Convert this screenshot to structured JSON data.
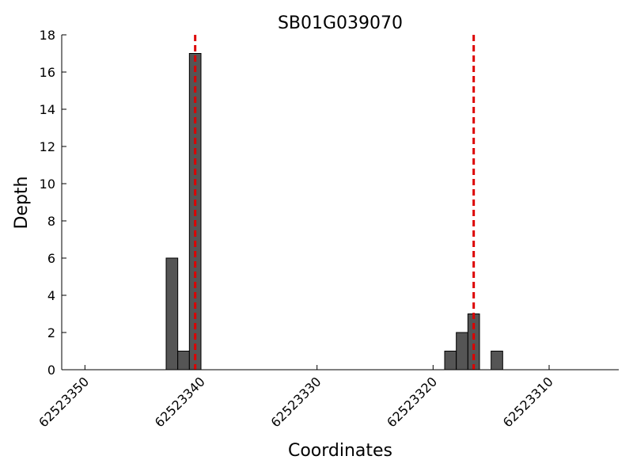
{
  "chart_data": {
    "type": "bar",
    "title": "SB01G039070",
    "xlabel": "Coordinates",
    "ylabel": "Depth",
    "x": [
      62523343,
      62523342,
      62523341,
      62523319,
      62523318,
      62523317,
      62523315
    ],
    "values": [
      6,
      1,
      17,
      1,
      2,
      3,
      1
    ],
    "color": "#555555",
    "xlim": [
      62523352,
      62523304
    ],
    "xticks": [
      62523350,
      62523340,
      62523330,
      62523320,
      62523310
    ],
    "ylim": [
      0,
      18
    ],
    "yticks": [
      0,
      2,
      4,
      6,
      8,
      10,
      12,
      14,
      16,
      18
    ],
    "vlines": [
      62523340.5,
      62523316.5
    ],
    "vline_color": "#dd0000"
  }
}
